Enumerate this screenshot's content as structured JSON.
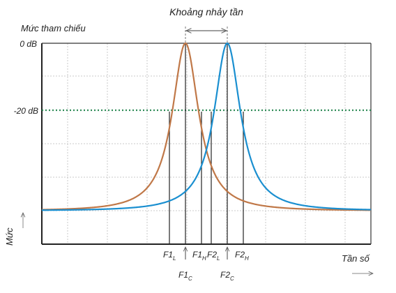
{
  "labels": {
    "hop_range": "Khoảng nhảy tần",
    "reference_level": "Mức tham chiếu",
    "level_0": "0 dB",
    "level_minus20": "-20 dB",
    "y_axis": "Mức",
    "x_axis": "Tần số"
  },
  "markers": {
    "f1_low": {
      "main": "F1",
      "sub": "L"
    },
    "f1_center": {
      "main": "F1",
      "sub": "C"
    },
    "f1_high": {
      "main": "F1",
      "sub": "H"
    },
    "f2_low": {
      "main": "F2",
      "sub": "L"
    },
    "f2_center": {
      "main": "F2",
      "sub": "C"
    },
    "f2_high": {
      "main": "F2",
      "sub": "H"
    }
  },
  "colors": {
    "curve_f1": "#c07848",
    "curve_f2": "#1a8fd0",
    "reference_line": "#2e8b57",
    "grid": "#c8c8c8",
    "frame": "#222222"
  }
}
